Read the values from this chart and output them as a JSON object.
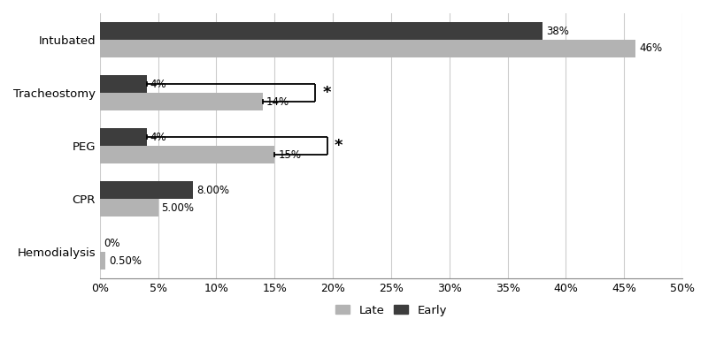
{
  "categories": [
    "Intubated",
    "Tracheostomy",
    "PEG",
    "CPR",
    "Hemodialysis"
  ],
  "late_values": [
    0.46,
    0.14,
    0.15,
    0.05,
    0.005
  ],
  "early_values": [
    0.38,
    0.04,
    0.04,
    0.08,
    0.0
  ],
  "late_labels": [
    "46%",
    "14%",
    "15%",
    "5.00%",
    "0.50%"
  ],
  "early_labels": [
    "38%",
    "4%",
    "4%",
    "8.00%",
    "0%"
  ],
  "late_color": "#b3b3b3",
  "early_color": "#3d3d3d",
  "bar_height": 0.33,
  "xlim": [
    0,
    0.5
  ],
  "xticks": [
    0,
    0.05,
    0.1,
    0.15,
    0.2,
    0.25,
    0.3,
    0.35,
    0.4,
    0.45,
    0.5
  ],
  "xtick_labels": [
    "0%",
    "5%",
    "10%",
    "15%",
    "20%",
    "25%",
    "30%",
    "35%",
    "40%",
    "45%",
    "50%"
  ],
  "legend_late": "Late",
  "legend_early": "Early",
  "significance_indices": [
    1,
    2
  ],
  "background_color": "#ffffff",
  "grid_color": "#cccccc"
}
